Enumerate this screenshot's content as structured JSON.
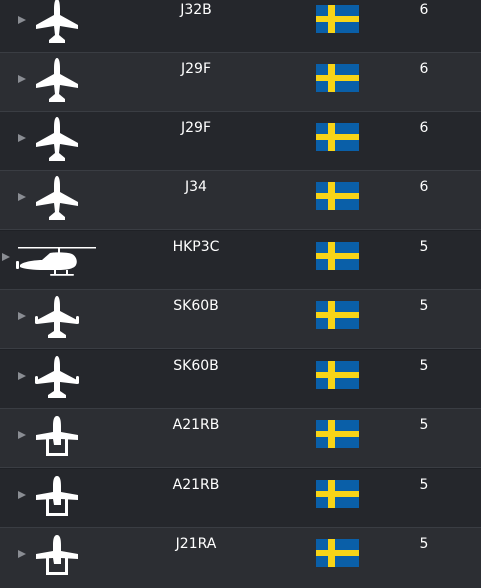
{
  "rows": [
    {
      "name": "J32B",
      "br": "6",
      "icon": "fighter-jet-icon",
      "country": "sweden-flag-icon"
    },
    {
      "name": "J29F",
      "br": "6",
      "icon": "fighter-jet-icon",
      "country": "sweden-flag-icon"
    },
    {
      "name": "J29F",
      "br": "6",
      "icon": "fighter-jet-icon",
      "country": "sweden-flag-icon"
    },
    {
      "name": "J34",
      "br": "6",
      "icon": "fighter-jet-icon",
      "country": "sweden-flag-icon"
    },
    {
      "name": "HKP3C",
      "br": "5",
      "icon": "helicopter-icon",
      "country": "sweden-flag-icon"
    },
    {
      "name": "SK60B",
      "br": "5",
      "icon": "fighter-jet-icon",
      "country": "sweden-flag-icon"
    },
    {
      "name": "SK60B",
      "br": "5",
      "icon": "fighter-jet-icon",
      "country": "sweden-flag-icon"
    },
    {
      "name": "A21RB",
      "br": "5",
      "icon": "twin-boom-jet-icon",
      "country": "sweden-flag-icon"
    },
    {
      "name": "A21RB",
      "br": "5",
      "icon": "twin-boom-jet-icon",
      "country": "sweden-flag-icon"
    },
    {
      "name": "J21RA",
      "br": "5",
      "icon": "twin-boom-jet-icon",
      "country": "sweden-flag-icon"
    }
  ],
  "colors": {
    "background": "#1f2126",
    "row_odd": "#25272c",
    "row_even": "#2c2e33",
    "flag_blue": "#0a5fa8",
    "flag_yellow": "#f7d417"
  }
}
